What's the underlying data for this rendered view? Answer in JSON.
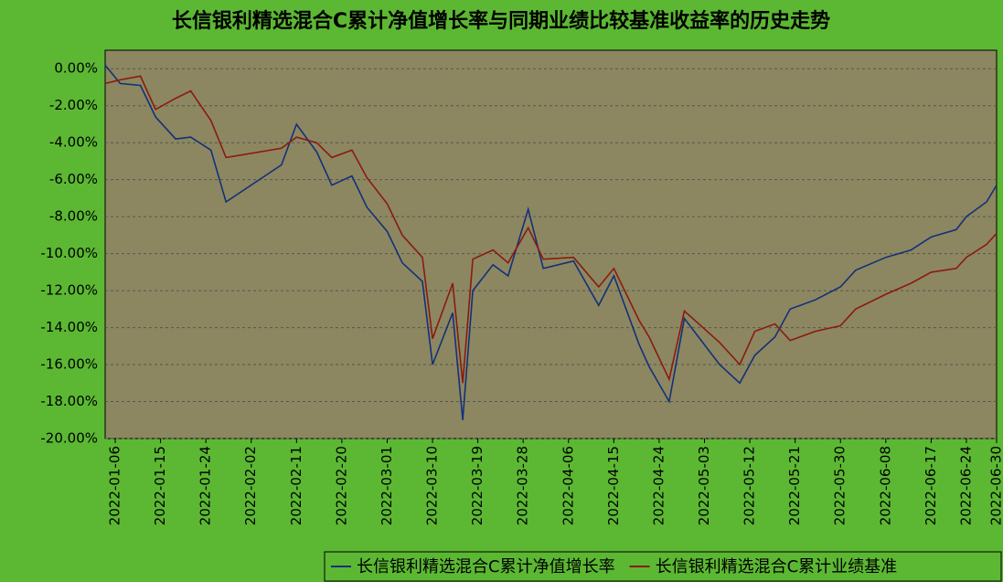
{
  "chart_data": {
    "type": "line",
    "title": "长信银利精选混合C累计净值增长率与同期业绩比较基准收益率的历史走势",
    "x": [
      "2022-01-04",
      "2022-01-07",
      "2022-01-11",
      "2022-01-14",
      "2022-01-18",
      "2022-01-21",
      "2022-01-25",
      "2022-01-28",
      "2022-02-08",
      "2022-02-11",
      "2022-02-15",
      "2022-02-18",
      "2022-02-22",
      "2022-02-25",
      "2022-03-01",
      "2022-03-04",
      "2022-03-08",
      "2022-03-10",
      "2022-03-14",
      "2022-03-16",
      "2022-03-18",
      "2022-03-22",
      "2022-03-25",
      "2022-03-29",
      "2022-04-01",
      "2022-04-07",
      "2022-04-12",
      "2022-04-15",
      "2022-04-20",
      "2022-04-22",
      "2022-04-26",
      "2022-04-29",
      "2022-05-06",
      "2022-05-10",
      "2022-05-13",
      "2022-05-17",
      "2022-05-20",
      "2022-05-25",
      "2022-05-30",
      "2022-06-02",
      "2022-06-08",
      "2022-06-13",
      "2022-06-17",
      "2022-06-22",
      "2022-06-24",
      "2022-06-28",
      "2022-06-30"
    ],
    "series": [
      {
        "name": "长信银利精选混合C累计净值增长率",
        "color": "#14307a",
        "values": [
          0.2,
          -0.8,
          -0.9,
          -2.6,
          -3.8,
          -3.7,
          -4.4,
          -7.2,
          -5.2,
          -3.0,
          -4.5,
          -6.3,
          -5.8,
          -7.5,
          -8.8,
          -10.5,
          -11.5,
          -16.0,
          -13.2,
          -19.0,
          -12.0,
          -10.6,
          -11.2,
          -7.6,
          -10.8,
          -10.4,
          -12.8,
          -11.2,
          -14.9,
          -16.1,
          -18.0,
          -13.5,
          -16.0,
          -17.0,
          -15.5,
          -14.5,
          -13.0,
          -12.5,
          -11.8,
          -10.9,
          -10.2,
          -9.8,
          -9.1,
          -8.7,
          -8.0,
          -7.2,
          -6.3
        ]
      },
      {
        "name": "长信银利精选混合C累计业绩基准",
        "color": "#8b1a10",
        "values": [
          -0.8,
          -0.6,
          -0.4,
          -2.2,
          -1.6,
          -1.2,
          -2.8,
          -4.8,
          -4.3,
          -3.7,
          -4.0,
          -4.8,
          -4.4,
          -5.9,
          -7.3,
          -9.0,
          -10.2,
          -14.6,
          -11.6,
          -17.0,
          -10.3,
          -9.8,
          -10.5,
          -8.6,
          -10.3,
          -10.2,
          -11.8,
          -10.8,
          -13.6,
          -14.5,
          -16.8,
          -13.1,
          -14.8,
          -16.0,
          -14.2,
          -13.8,
          -14.7,
          -14.2,
          -13.9,
          -13.0,
          -12.2,
          -11.6,
          -11.0,
          -10.8,
          -10.2,
          -9.5,
          -8.9
        ]
      }
    ],
    "xlim": [
      "2022-01-04",
      "2022-06-30"
    ],
    "xticks": [
      "2022-01-06",
      "2022-01-15",
      "2022-01-24",
      "2022-02-02",
      "2022-02-11",
      "2022-02-20",
      "2022-03-01",
      "2022-03-10",
      "2022-03-19",
      "2022-03-28",
      "2022-04-06",
      "2022-04-15",
      "2022-04-24",
      "2022-05-03",
      "2022-05-12",
      "2022-05-21",
      "2022-05-30",
      "2022-06-08",
      "2022-06-17",
      "2022-06-24",
      "2022-06-30"
    ],
    "ylim": [
      -20,
      1
    ],
    "yticks": [
      {
        "value": 0,
        "label": "0.00%"
      },
      {
        "value": -2,
        "label": "-2.00%"
      },
      {
        "value": -4,
        "label": "-4.00%"
      },
      {
        "value": -6,
        "label": "-6.00%"
      },
      {
        "value": -8,
        "label": "-8.00%"
      },
      {
        "value": -10,
        "label": "-10.00%"
      },
      {
        "value": -12,
        "label": "-12.00%"
      },
      {
        "value": -14,
        "label": "-14.00%"
      },
      {
        "value": -16,
        "label": "-16.00%"
      },
      {
        "value": -18,
        "label": "-18.00%"
      },
      {
        "value": -20,
        "label": "-20.00%"
      }
    ],
    "grid": true
  }
}
